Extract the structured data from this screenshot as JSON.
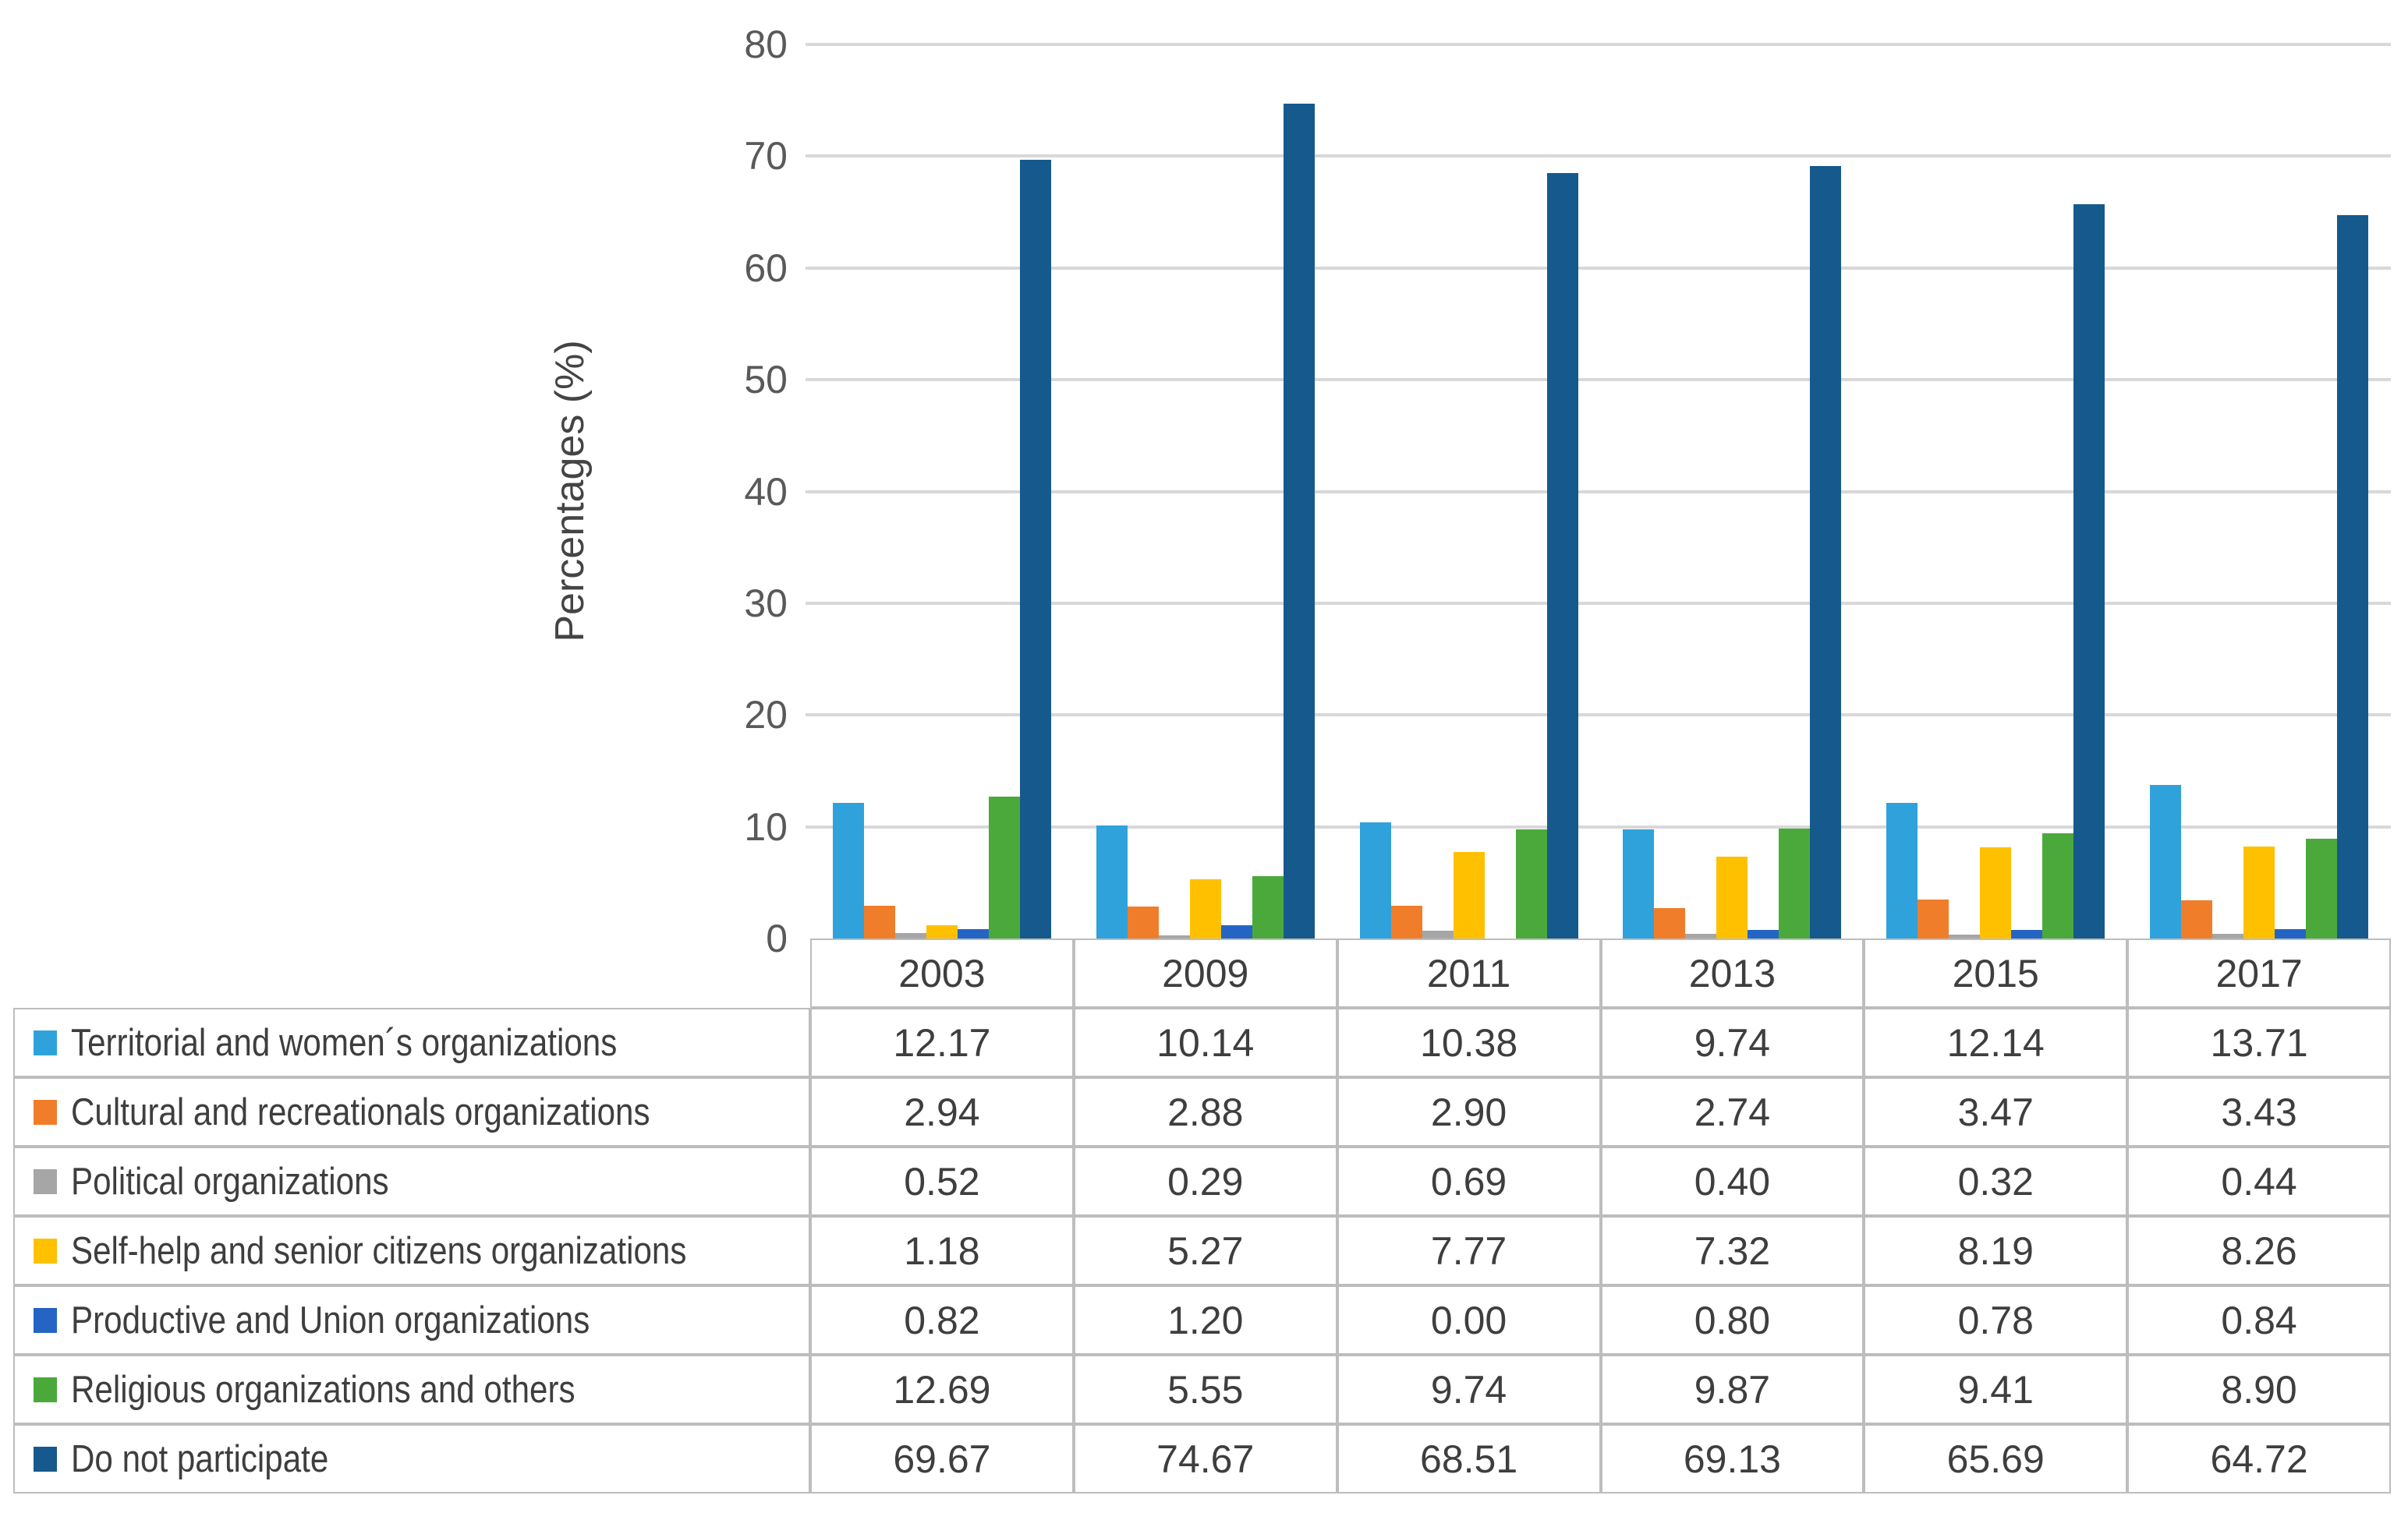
{
  "chart_data": {
    "type": "bar",
    "title": "",
    "xlabel": "",
    "ylabel": "Percentages (%)",
    "ylim": [
      0,
      80
    ],
    "yticks": [
      0,
      10,
      20,
      30,
      40,
      50,
      60,
      70,
      80
    ],
    "grid": true,
    "value_decimals": 2,
    "legend_position": "table-left",
    "categories": [
      "2003",
      "2009",
      "2011",
      "2013",
      "2015",
      "2017"
    ],
    "series": [
      {
        "name": "Territorial and women´s organizations",
        "color": "#2FA2DC",
        "values": [
          12.17,
          10.14,
          10.38,
          9.74,
          12.14,
          13.71
        ]
      },
      {
        "name": "Cultural and recreationals organizations",
        "color": "#F07D2A",
        "values": [
          2.94,
          2.88,
          2.9,
          2.74,
          3.47,
          3.43
        ]
      },
      {
        "name": "Political organizations",
        "color": "#A6A6A6",
        "values": [
          0.52,
          0.29,
          0.69,
          0.4,
          0.32,
          0.44
        ]
      },
      {
        "name": "Self-help and senior citizens organizations",
        "color": "#FFC000",
        "values": [
          1.18,
          5.27,
          7.77,
          7.32,
          8.19,
          8.26
        ]
      },
      {
        "name": "Productive and Union organizations",
        "color": "#2465C4",
        "values": [
          0.82,
          1.2,
          0.0,
          0.8,
          0.78,
          0.84
        ]
      },
      {
        "name": "Religious organizations and others",
        "color": "#4BA93B",
        "values": [
          12.69,
          5.55,
          9.74,
          9.87,
          9.41,
          8.9
        ]
      },
      {
        "name": "Do not participate",
        "color": "#16598D",
        "values": [
          69.67,
          74.67,
          68.51,
          69.13,
          65.69,
          64.72
        ]
      }
    ]
  }
}
